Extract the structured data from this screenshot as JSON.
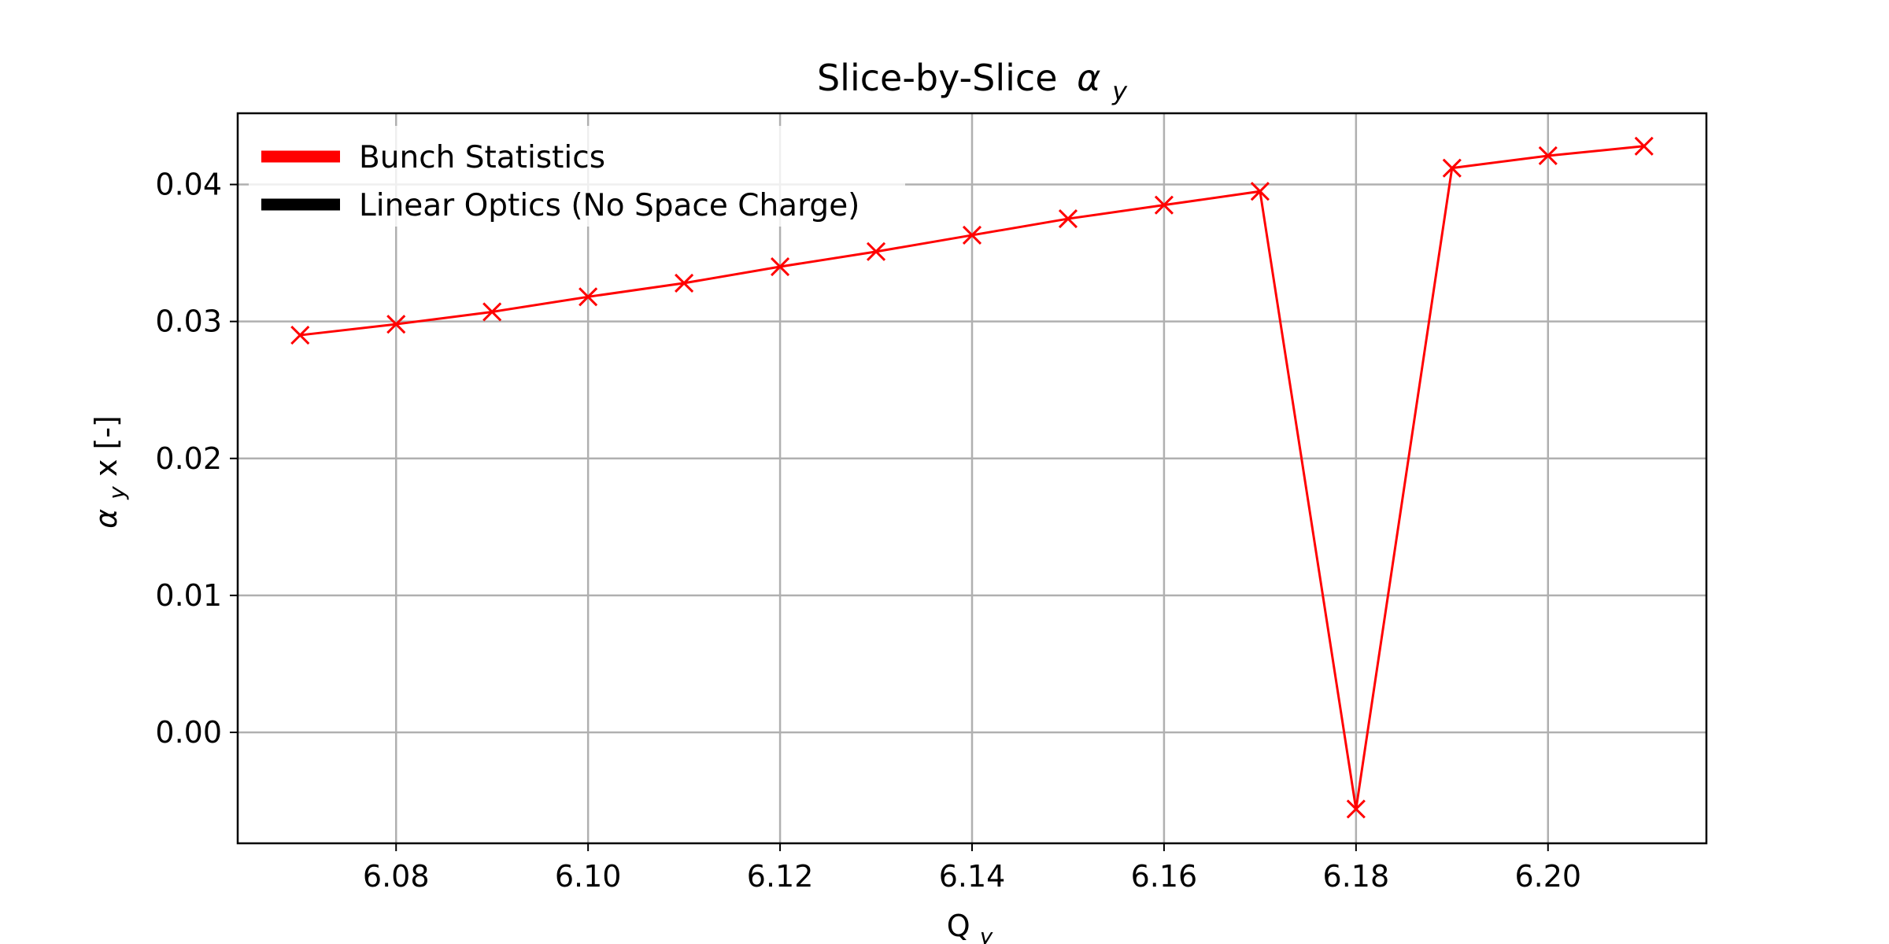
{
  "chart_data": {
    "type": "line",
    "title": "Slice-by-Slice",
    "title_symbol": "α",
    "title_subscript": "y",
    "xlabel": "Q",
    "xlabel_subscript": "y",
    "ylabel_symbol": "α",
    "ylabel_subscript": "y",
    "ylabel_suffix": "x [-]",
    "xlim": [
      6.0635,
      6.2165
    ],
    "ylim": [
      -0.0081,
      0.0452
    ],
    "x_ticks": [
      6.08,
      6.1,
      6.12,
      6.14,
      6.16,
      6.18,
      6.2
    ],
    "x_tick_labels": [
      "6.08",
      "6.10",
      "6.12",
      "6.14",
      "6.16",
      "6.18",
      "6.20"
    ],
    "y_ticks": [
      0.0,
      0.01,
      0.02,
      0.03,
      0.04
    ],
    "y_tick_labels": [
      "0.00",
      "0.01",
      "0.02",
      "0.03",
      "0.04"
    ],
    "grid": true,
    "legend_position": "top-left",
    "legend": [
      {
        "label": "Bunch Statistics",
        "color": "#ff0000"
      },
      {
        "label": "Linear Optics (No Space Charge)",
        "color": "#000000"
      }
    ],
    "series": [
      {
        "name": "Bunch Statistics",
        "color": "#ff0000",
        "marker": "x",
        "x": [
          6.07,
          6.08,
          6.09,
          6.1,
          6.11,
          6.12,
          6.13,
          6.14,
          6.15,
          6.16,
          6.17,
          6.18,
          6.19,
          6.2,
          6.21
        ],
        "y": [
          0.029,
          0.0298,
          0.0307,
          0.0318,
          0.0328,
          0.034,
          0.0351,
          0.0363,
          0.0375,
          0.0385,
          0.0395,
          -0.0056,
          0.0412,
          0.0421,
          0.0428
        ]
      }
    ]
  }
}
